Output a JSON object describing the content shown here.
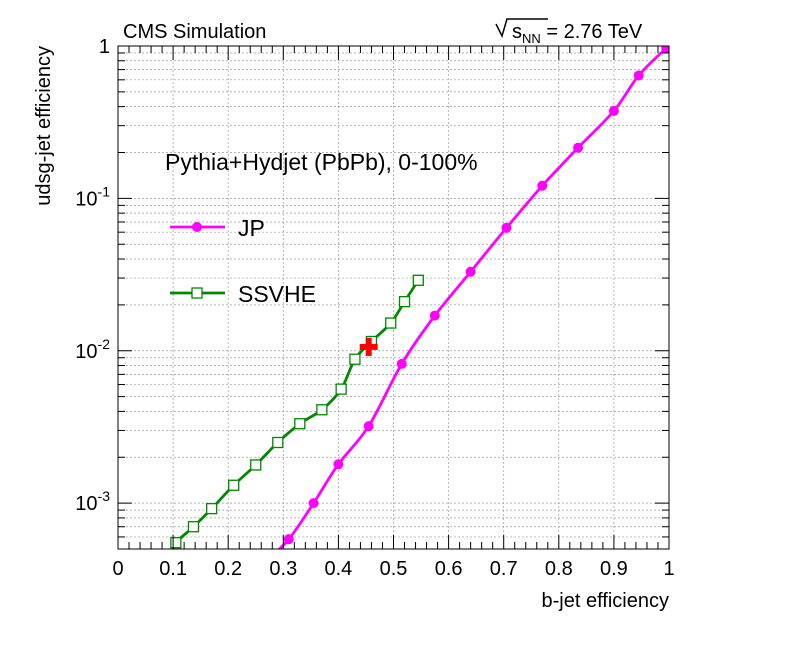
{
  "header": {
    "left_title": "CMS Simulation",
    "energy_label_prefix": "s",
    "energy_label_subscript": "NN",
    "energy_label_value": " = 2.76 TeV"
  },
  "annotation": "Pythia+Hydjet (PbPb), 0-100%",
  "colors": {
    "jp": "#ff00ff",
    "ssvhe": "#008800",
    "marker": "#ff0000",
    "grid": "#9a9a9a"
  },
  "chart_data": {
    "type": "line",
    "xlabel": "b-jet efficiency",
    "ylabel": "udsg-jet efficiency",
    "xlim": [
      0,
      1
    ],
    "ylim": [
      0.0005,
      1
    ],
    "yscale": "log",
    "grid": true,
    "legend_placement": "upper-left",
    "x_ticks": [
      {
        "value": 0,
        "label": "0"
      },
      {
        "value": 0.1,
        "label": "0.1"
      },
      {
        "value": 0.2,
        "label": "0.2"
      },
      {
        "value": 0.3,
        "label": "0.3"
      },
      {
        "value": 0.4,
        "label": "0.4"
      },
      {
        "value": 0.5,
        "label": "0.5"
      },
      {
        "value": 0.6,
        "label": "0.6"
      },
      {
        "value": 0.7,
        "label": "0.7"
      },
      {
        "value": 0.8,
        "label": "0.8"
      },
      {
        "value": 0.9,
        "label": "0.9"
      },
      {
        "value": 1,
        "label": "1"
      }
    ],
    "y_ticks": [
      {
        "value": 0.001,
        "base": "10",
        "exp": "-3"
      },
      {
        "value": 0.01,
        "base": "10",
        "exp": "-2"
      },
      {
        "value": 0.1,
        "base": "10",
        "exp": "-1"
      },
      {
        "value": 1,
        "base": "1",
        "exp": ""
      }
    ],
    "series": [
      {
        "name": "JP",
        "marker": "filled-circle",
        "x": [
          0.27,
          0.31,
          0.355,
          0.4,
          0.455,
          0.515,
          0.575,
          0.64,
          0.705,
          0.77,
          0.835,
          0.9,
          0.945,
          0.995
        ],
        "y": [
          0.00042,
          0.00058,
          0.001,
          0.0018,
          0.0032,
          0.0082,
          0.017,
          0.033,
          0.064,
          0.121,
          0.215,
          0.375,
          0.64,
          0.97
        ]
      },
      {
        "name": "SSVHE",
        "marker": "open-square",
        "x": [
          0.1,
          0.105,
          0.137,
          0.17,
          0.21,
          0.25,
          0.29,
          0.33,
          0.37,
          0.405,
          0.43,
          0.46,
          0.495,
          0.52,
          0.545
        ],
        "y": [
          0.00048,
          0.00055,
          0.0007,
          0.00092,
          0.00131,
          0.00178,
          0.0025,
          0.00332,
          0.0041,
          0.0056,
          0.0088,
          0.0115,
          0.0152,
          0.021,
          0.029
        ]
      }
    ],
    "markers": [
      {
        "x": 0.455,
        "y": 0.0106,
        "symbol": "cross"
      }
    ]
  }
}
